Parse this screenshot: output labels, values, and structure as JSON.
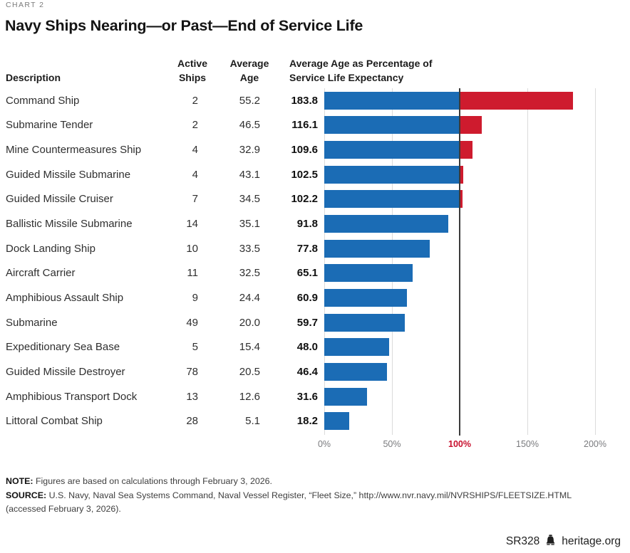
{
  "page": {
    "kicker": "CHART 2",
    "title": "Navy Ships Nearing—or Past—End of Service Life"
  },
  "table": {
    "headers": {
      "description": "Description",
      "active_ships": "Active\nShips",
      "average_age": "Average\nAge",
      "pct_service_life": "Average Age as Percentage of\nService Life Expectancy"
    }
  },
  "rows": [
    {
      "description": "Command Ship",
      "active_ships": "2",
      "average_age": "55.2",
      "pct_label": "183.8",
      "pct": 183.8
    },
    {
      "description": "Submarine Tender",
      "active_ships": "2",
      "average_age": "46.5",
      "pct_label": "116.1",
      "pct": 116.1
    },
    {
      "description": "Mine Countermeasures Ship",
      "active_ships": "4",
      "average_age": "32.9",
      "pct_label": "109.6",
      "pct": 109.6
    },
    {
      "description": "Guided Missile Submarine",
      "active_ships": "4",
      "average_age": "43.1",
      "pct_label": "102.5",
      "pct": 102.5
    },
    {
      "description": "Guided Missile Cruiser",
      "active_ships": "7",
      "average_age": "34.5",
      "pct_label": "102.2",
      "pct": 102.2
    },
    {
      "description": "Ballistic Missile Submarine",
      "active_ships": "14",
      "average_age": "35.1",
      "pct_label": "91.8",
      "pct": 91.8
    },
    {
      "description": "Dock Landing Ship",
      "active_ships": "10",
      "average_age": "33.5",
      "pct_label": "77.8",
      "pct": 77.8
    },
    {
      "description": "Aircraft Carrier",
      "active_ships": "11",
      "average_age": "32.5",
      "pct_label": "65.1",
      "pct": 65.1
    },
    {
      "description": "Amphibious Assault Ship",
      "active_ships": "9",
      "average_age": "24.4",
      "pct_label": "60.9",
      "pct": 60.9
    },
    {
      "description": "Submarine",
      "active_ships": "49",
      "average_age": "20.0",
      "pct_label": "59.7",
      "pct": 59.7
    },
    {
      "description": "Expeditionary Sea Base",
      "active_ships": "5",
      "average_age": "15.4",
      "pct_label": "48.0",
      "pct": 48.0
    },
    {
      "description": "Guided Missile Destroyer",
      "active_ships": "78",
      "average_age": "20.5",
      "pct_label": "46.4",
      "pct": 46.4
    },
    {
      "description": "Amphibious Transport Dock",
      "active_ships": "13",
      "average_age": "12.6",
      "pct_label": "31.6",
      "pct": 31.6
    },
    {
      "description": "Littoral Combat Ship",
      "active_ships": "28",
      "average_age": "5.1",
      "pct_label": "18.2",
      "pct": 18.2
    }
  ],
  "chart_data": {
    "type": "bar",
    "orientation": "horizontal",
    "title": "Navy Ships Nearing—or Past—End of Service Life",
    "categories": [
      "Command Ship",
      "Submarine Tender",
      "Mine Countermeasures Ship",
      "Guided Missile Submarine",
      "Guided Missile Cruiser",
      "Ballistic Missile Submarine",
      "Dock Landing Ship",
      "Aircraft Carrier",
      "Amphibious Assault Ship",
      "Submarine",
      "Expeditionary Sea Base",
      "Guided Missile Destroyer",
      "Amphibious Transport Dock",
      "Littoral Combat Ship"
    ],
    "series": [
      {
        "name": "Active Ships",
        "values": [
          2,
          2,
          4,
          4,
          7,
          14,
          10,
          11,
          9,
          49,
          5,
          78,
          13,
          28
        ]
      },
      {
        "name": "Average Age",
        "values": [
          55.2,
          46.5,
          32.9,
          43.1,
          34.5,
          35.1,
          33.5,
          32.5,
          24.4,
          20.0,
          15.4,
          20.5,
          12.6,
          5.1
        ]
      },
      {
        "name": "Average Age as Percentage of Service Life Expectancy",
        "values": [
          183.8,
          116.1,
          109.6,
          102.5,
          102.2,
          91.8,
          77.8,
          65.1,
          60.9,
          59.7,
          48.0,
          46.4,
          31.6,
          18.2
        ]
      }
    ],
    "xlabel": "Average Age as Percentage of Service Life Expectancy",
    "ylabel": "",
    "xlim": [
      0,
      200
    ],
    "x_ticks": [
      {
        "label": "0%",
        "value": 0,
        "highlight": false
      },
      {
        "label": "50%",
        "value": 50,
        "highlight": false
      },
      {
        "label": "100%",
        "value": 100,
        "highlight": true
      },
      {
        "label": "150%",
        "value": 150,
        "highlight": false
      },
      {
        "label": "200%",
        "value": 200,
        "highlight": false
      }
    ],
    "threshold": 100,
    "grid": "vertical",
    "legend": "none",
    "colors": {
      "below_threshold": "#1B6CB5",
      "above_threshold": "#CE1B2E",
      "threshold_line": "#3B3B3B",
      "gridline": "#DBDBDB",
      "tick_text": "#7A7B7E",
      "tick_highlight": "#C8102E"
    }
  },
  "notes": {
    "note_label": "NOTE:",
    "note_text": " Figures are based on calculations through February 3, 2026.",
    "source_label": "SOURCE:",
    "source_text": " U.S. Navy, Naval Sea Systems Command, Naval Vessel Register, “Fleet Size,” http://www.nvr.navy.mil/NVRSHIPS/FLEETSIZE.HTML (accessed February 3, 2026)."
  },
  "footer": {
    "report_id": "SR328",
    "site": "heritage.org",
    "logo": "heritage-bell-icon"
  }
}
